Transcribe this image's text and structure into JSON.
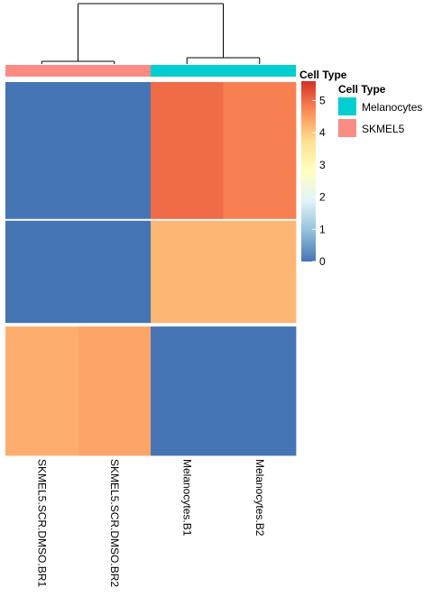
{
  "chart_data": {
    "type": "heatmap",
    "title": "",
    "columns": [
      "SKMEL5.SCR.DMSO.BR1",
      "SKMEL5.SCR.DMSO.BR2",
      "Melanocytes.B1",
      "Melanocytes.B2"
    ],
    "annotation": {
      "name": "Cell Type",
      "column_values": [
        "SKMEL5",
        "SKMEL5",
        "Melanocytes",
        "Melanocytes"
      ],
      "legend": [
        {
          "label": "Melanocytes",
          "color": "#00CED1"
        },
        {
          "label": "SKMEL5",
          "color": "#FA8C84"
        }
      ]
    },
    "colorbar": {
      "title": "Cell Type",
      "min": 0,
      "max": 5.6,
      "ticks": [
        0,
        1,
        2,
        3,
        4,
        5
      ],
      "colors": [
        "#4575B4",
        "#91BFDB",
        "#E0F3F8",
        "#FFFFBF",
        "#FEE090",
        "#FC8D59",
        "#D73027"
      ]
    },
    "row_blocks": [
      {
        "rows": 154,
        "values": [
          0,
          0,
          5.0,
          4.8
        ]
      },
      {
        "rows": 2,
        "values": [
          null,
          null,
          null,
          null
        ]
      },
      {
        "rows": 115,
        "values": [
          0,
          0,
          4.2,
          4.2
        ]
      },
      {
        "rows": 4,
        "values": [
          null,
          null,
          null,
          null
        ]
      },
      {
        "rows": 145,
        "values": [
          4.3,
          4.4,
          0,
          0
        ]
      }
    ],
    "dendrogram": {
      "merges": [
        [
          "SKMEL5.SCR.DMSO.BR1",
          "SKMEL5.SCR.DMSO.BR2"
        ],
        [
          "Melanocytes.B1",
          "Melanocytes.B2"
        ],
        [
          "SKMEL5",
          "Melanocytes"
        ]
      ]
    }
  }
}
